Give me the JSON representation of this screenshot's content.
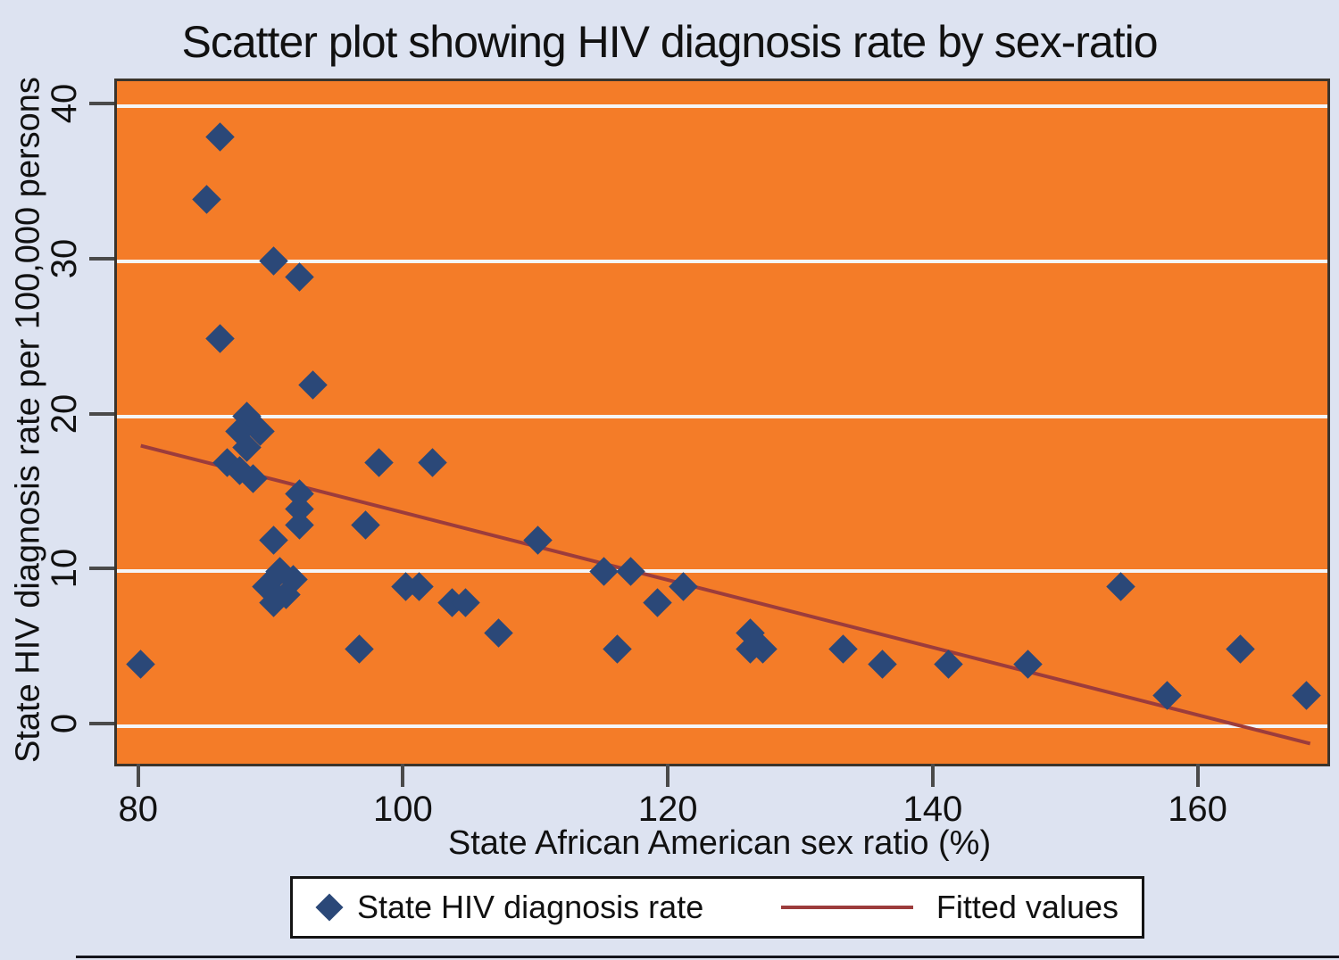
{
  "title": "Scatter plot showing HIV diagnosis rate by sex-ratio",
  "colors": {
    "page_bg": "#dde3f1",
    "plot_bg": "#f47c28",
    "marker": "#2b4878",
    "fit_line": "#9c3c3c",
    "gridline": "#f4f5f7",
    "plot_border": "#3a342c",
    "tick": "#4a4a4a",
    "text": "#111111"
  },
  "chart_data": {
    "type": "scatter",
    "title": "Scatter plot showing HIV diagnosis rate by sex-ratio",
    "xlabel": "State African American sex ratio (%)",
    "ylabel": "State HIV diagnosis rate per 100,000 persons",
    "xlim": [
      78.2,
      169.6
    ],
    "ylim": [
      -2.4,
      41.6
    ],
    "x_ticks": [
      80,
      100,
      120,
      140,
      160
    ],
    "y_ticks": [
      0,
      10,
      20,
      30,
      40
    ],
    "grid": "horizontal-only",
    "legend_position": "bottom",
    "series": [
      {
        "name": "State HIV diagnosis rate",
        "type": "scatter",
        "marker": "diamond",
        "color": "#2b4878",
        "points": [
          [
            80,
            4
          ],
          [
            86,
            38
          ],
          [
            85,
            34
          ],
          [
            90,
            30
          ],
          [
            92,
            29
          ],
          [
            86,
            25
          ],
          [
            93,
            22
          ],
          [
            88,
            20
          ],
          [
            87.5,
            19
          ],
          [
            89,
            19
          ],
          [
            88,
            18
          ],
          [
            86.5,
            17
          ],
          [
            87.5,
            16.5
          ],
          [
            88.5,
            16
          ],
          [
            92,
            15
          ],
          [
            92,
            14
          ],
          [
            92,
            13
          ],
          [
            90,
            12
          ],
          [
            90.5,
            10
          ],
          [
            91.5,
            9.5
          ],
          [
            89.5,
            9
          ],
          [
            91,
            8.5
          ],
          [
            90,
            8
          ],
          [
            96.5,
            5
          ],
          [
            97,
            13
          ],
          [
            98,
            17
          ],
          [
            102,
            17
          ],
          [
            100,
            9
          ],
          [
            101,
            9
          ],
          [
            103.5,
            8
          ],
          [
            104.5,
            8
          ],
          [
            107,
            6
          ],
          [
            110,
            12
          ],
          [
            115,
            10
          ],
          [
            117,
            10
          ],
          [
            119,
            8
          ],
          [
            121,
            9
          ],
          [
            116,
            5
          ],
          [
            126,
            6
          ],
          [
            126,
            5
          ],
          [
            127,
            5
          ],
          [
            133,
            5
          ],
          [
            136,
            4
          ],
          [
            141,
            4
          ],
          [
            147,
            4
          ],
          [
            154,
            9
          ],
          [
            157.5,
            2
          ],
          [
            163,
            5
          ],
          [
            168,
            2
          ]
        ]
      },
      {
        "name": "Fitted values",
        "type": "line",
        "color": "#9c3c3c",
        "points": [
          [
            80,
            18.1
          ],
          [
            168.3,
            -1.1
          ]
        ]
      }
    ]
  },
  "legend": {
    "scatter_label": "State HIV diagnosis rate",
    "fitted_label": "Fitted values"
  }
}
